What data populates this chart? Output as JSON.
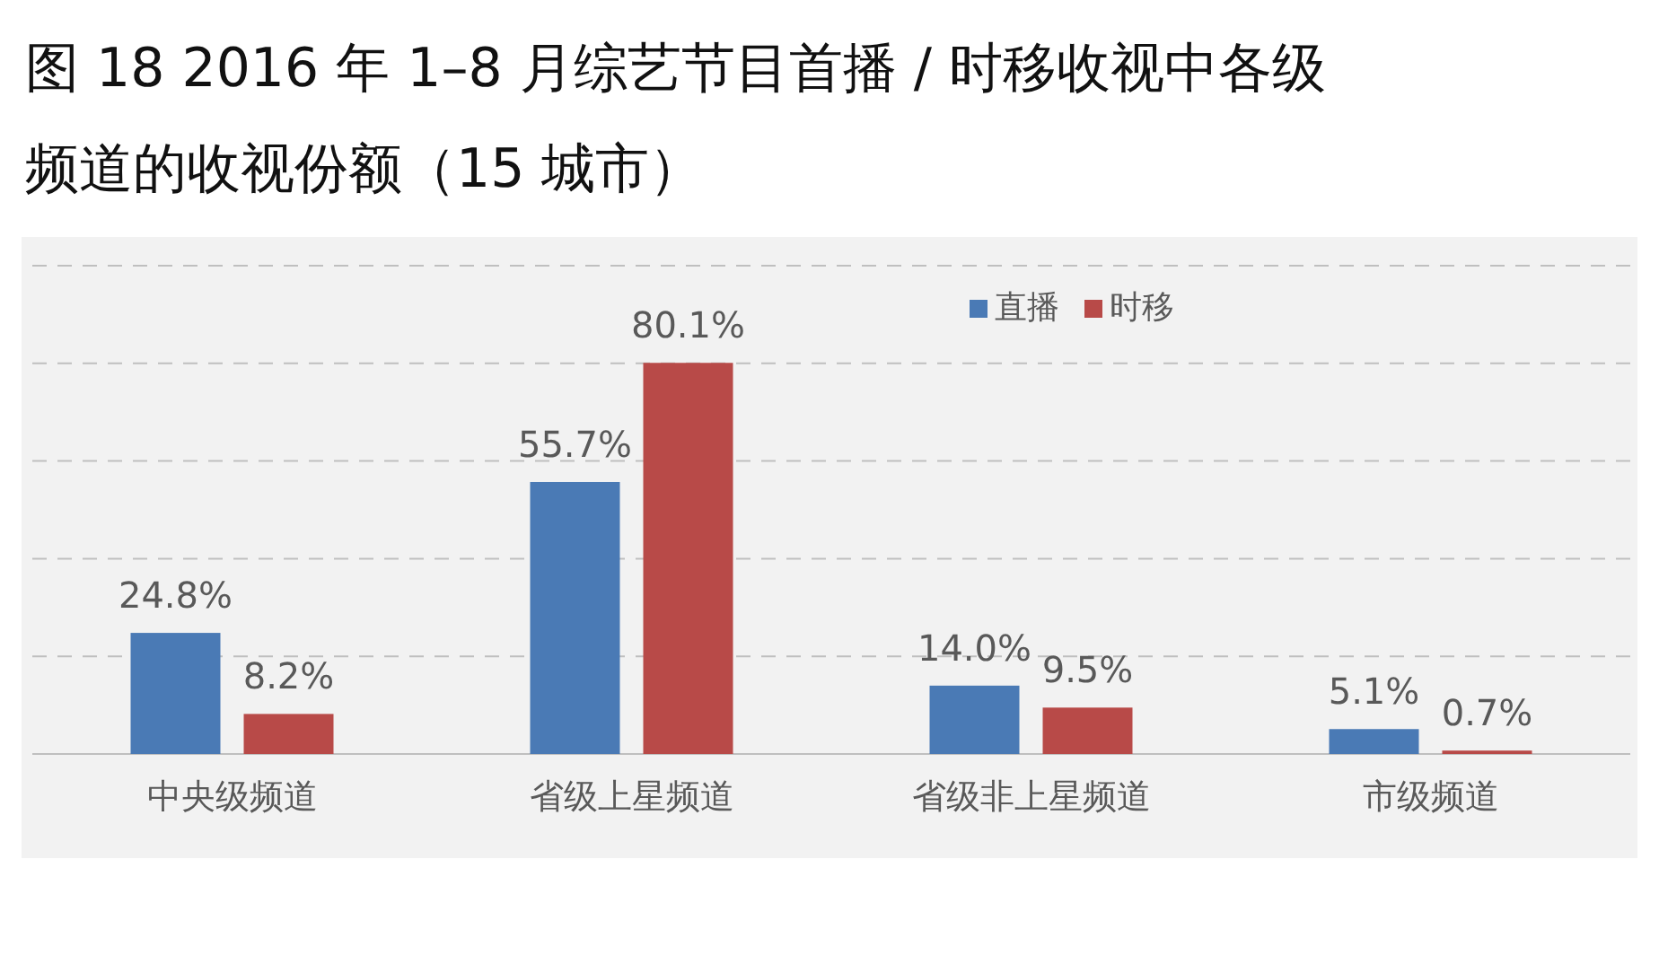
{
  "chart_data": {
    "type": "bar",
    "title": "图 18 2016 年 1–8 月综艺节目首播 / 时移收视中各级频道的收视份额（15 城市）",
    "categories": [
      "中央级频道",
      "省级上星频道",
      "省级非上星频道",
      "市级频道"
    ],
    "series": [
      {
        "name": "直播",
        "color": "#4a7ab5",
        "values": [
          24.8,
          55.7,
          14.0,
          5.1
        ],
        "value_labels": [
          "24.8%",
          "55.7%",
          "14.0%",
          "5.1%"
        ]
      },
      {
        "name": "时移",
        "color": "#b84a48",
        "values": [
          8.2,
          80.1,
          9.5,
          0.7
        ],
        "value_labels": [
          "8.2%",
          "80.1%",
          "9.5%",
          "0.7%"
        ]
      }
    ],
    "ylim": [
      0,
      100
    ],
    "yticks": [
      {
        "value": 0,
        "label": null
      },
      {
        "value": 20,
        "label": null
      },
      {
        "value": 40,
        "label": null
      },
      {
        "value": 60,
        "label": null
      },
      {
        "value": 80,
        "label": null
      },
      {
        "value": 100,
        "label": null
      }
    ],
    "tick_labels": "x",
    "grid": "y",
    "legend": "top"
  }
}
